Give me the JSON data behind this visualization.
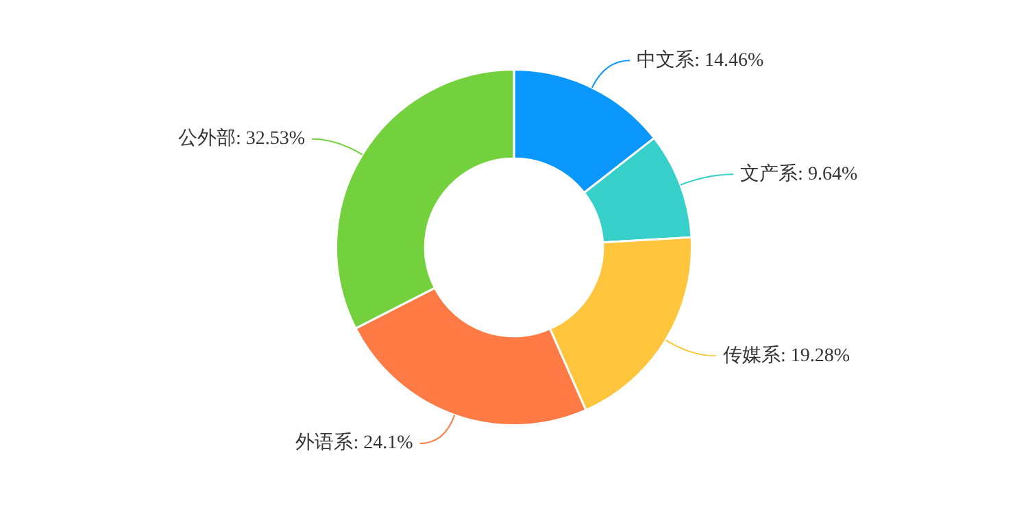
{
  "chart_data": {
    "type": "donut",
    "categories": [
      "中文系",
      "文产系",
      "传媒系",
      "外语系",
      "公外部"
    ],
    "values": [
      14.46,
      9.64,
      19.28,
      24.1,
      32.53
    ],
    "value_labels": [
      "14.46%",
      "9.64%",
      "19.28%",
      "24.1%",
      "32.53%"
    ],
    "colors": [
      "#0a97fb",
      "#36cfc9",
      "#ffc53d",
      "#ff7a45",
      "#73d13d"
    ],
    "legend": false
  }
}
